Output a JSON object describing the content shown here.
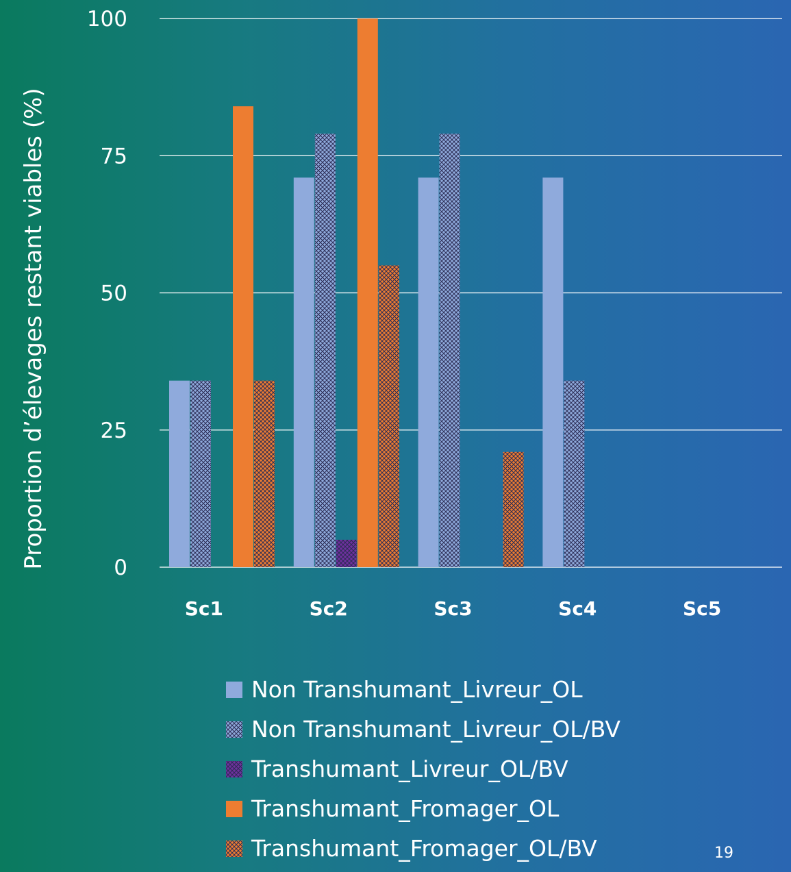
{
  "page_number": "19",
  "chart_data": {
    "type": "bar",
    "title": "",
    "xlabel": "",
    "ylabel": "Proportion d’élevages restant viables (%)",
    "ylim": [
      0,
      100
    ],
    "yticks": [
      0,
      25,
      50,
      75,
      100
    ],
    "grid": "horizontal",
    "legend_position": "bottom",
    "categories": [
      "Sc1",
      "Sc2",
      "Sc3",
      "Sc4",
      "Sc5"
    ],
    "series": [
      {
        "name": "Non Transhumant_Livreur_OL",
        "values": [
          34,
          71,
          71,
          71,
          0
        ],
        "color": "#8faadc",
        "pattern": "solid"
      },
      {
        "name": "Non Transhumant_Livreur_OL/BV",
        "values": [
          34,
          79,
          79,
          34,
          0
        ],
        "color": "#8faadc",
        "pattern": "crosshatch"
      },
      {
        "name": "Transhumant_Livreur_OL/BV",
        "values": [
          0,
          5,
          0,
          0,
          0
        ],
        "color": "#7030a0",
        "pattern": "crosshatch"
      },
      {
        "name": "Transhumant_Fromager_OL",
        "values": [
          84,
          100,
          0,
          0,
          0
        ],
        "color": "#ed7d31",
        "pattern": "solid"
      },
      {
        "name": "Transhumant_Fromager_OL/BV",
        "values": [
          34,
          55,
          21,
          0,
          0
        ],
        "color": "#ed7d31",
        "pattern": "crosshatch"
      }
    ]
  }
}
